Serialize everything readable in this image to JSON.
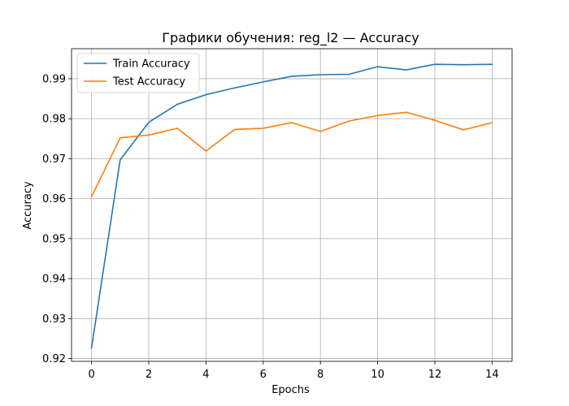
{
  "chart_data": {
    "type": "line",
    "title": "Графики обучения: reg_l2 — Accuracy",
    "xlabel": "Epochs",
    "ylabel": "Accuracy",
    "x": [
      0,
      1,
      2,
      3,
      4,
      5,
      6,
      7,
      8,
      9,
      10,
      11,
      12,
      13,
      14
    ],
    "xlim": [
      -0.7,
      14.7
    ],
    "ylim": [
      0.9193,
      0.9975
    ],
    "xticks": [
      0,
      2,
      4,
      6,
      8,
      10,
      12,
      14
    ],
    "yticks": [
      0.92,
      0.93,
      0.94,
      0.95,
      0.96,
      0.97,
      0.98,
      0.99
    ],
    "grid": true,
    "legend_position": "top-left",
    "series": [
      {
        "name": "Train Accuracy",
        "color": "#1f77b4",
        "values": [
          0.9227,
          0.9697,
          0.9791,
          0.9836,
          0.986,
          0.9877,
          0.9892,
          0.9906,
          0.991,
          0.9911,
          0.993,
          0.9922,
          0.9936,
          0.9935,
          0.9936
        ]
      },
      {
        "name": "Test Accuracy",
        "color": "#ff7f0e",
        "values": [
          0.9605,
          0.9752,
          0.9759,
          0.9776,
          0.9719,
          0.9773,
          0.9776,
          0.979,
          0.9768,
          0.9794,
          0.9808,
          0.9816,
          0.9796,
          0.9772,
          0.979
        ]
      }
    ]
  }
}
